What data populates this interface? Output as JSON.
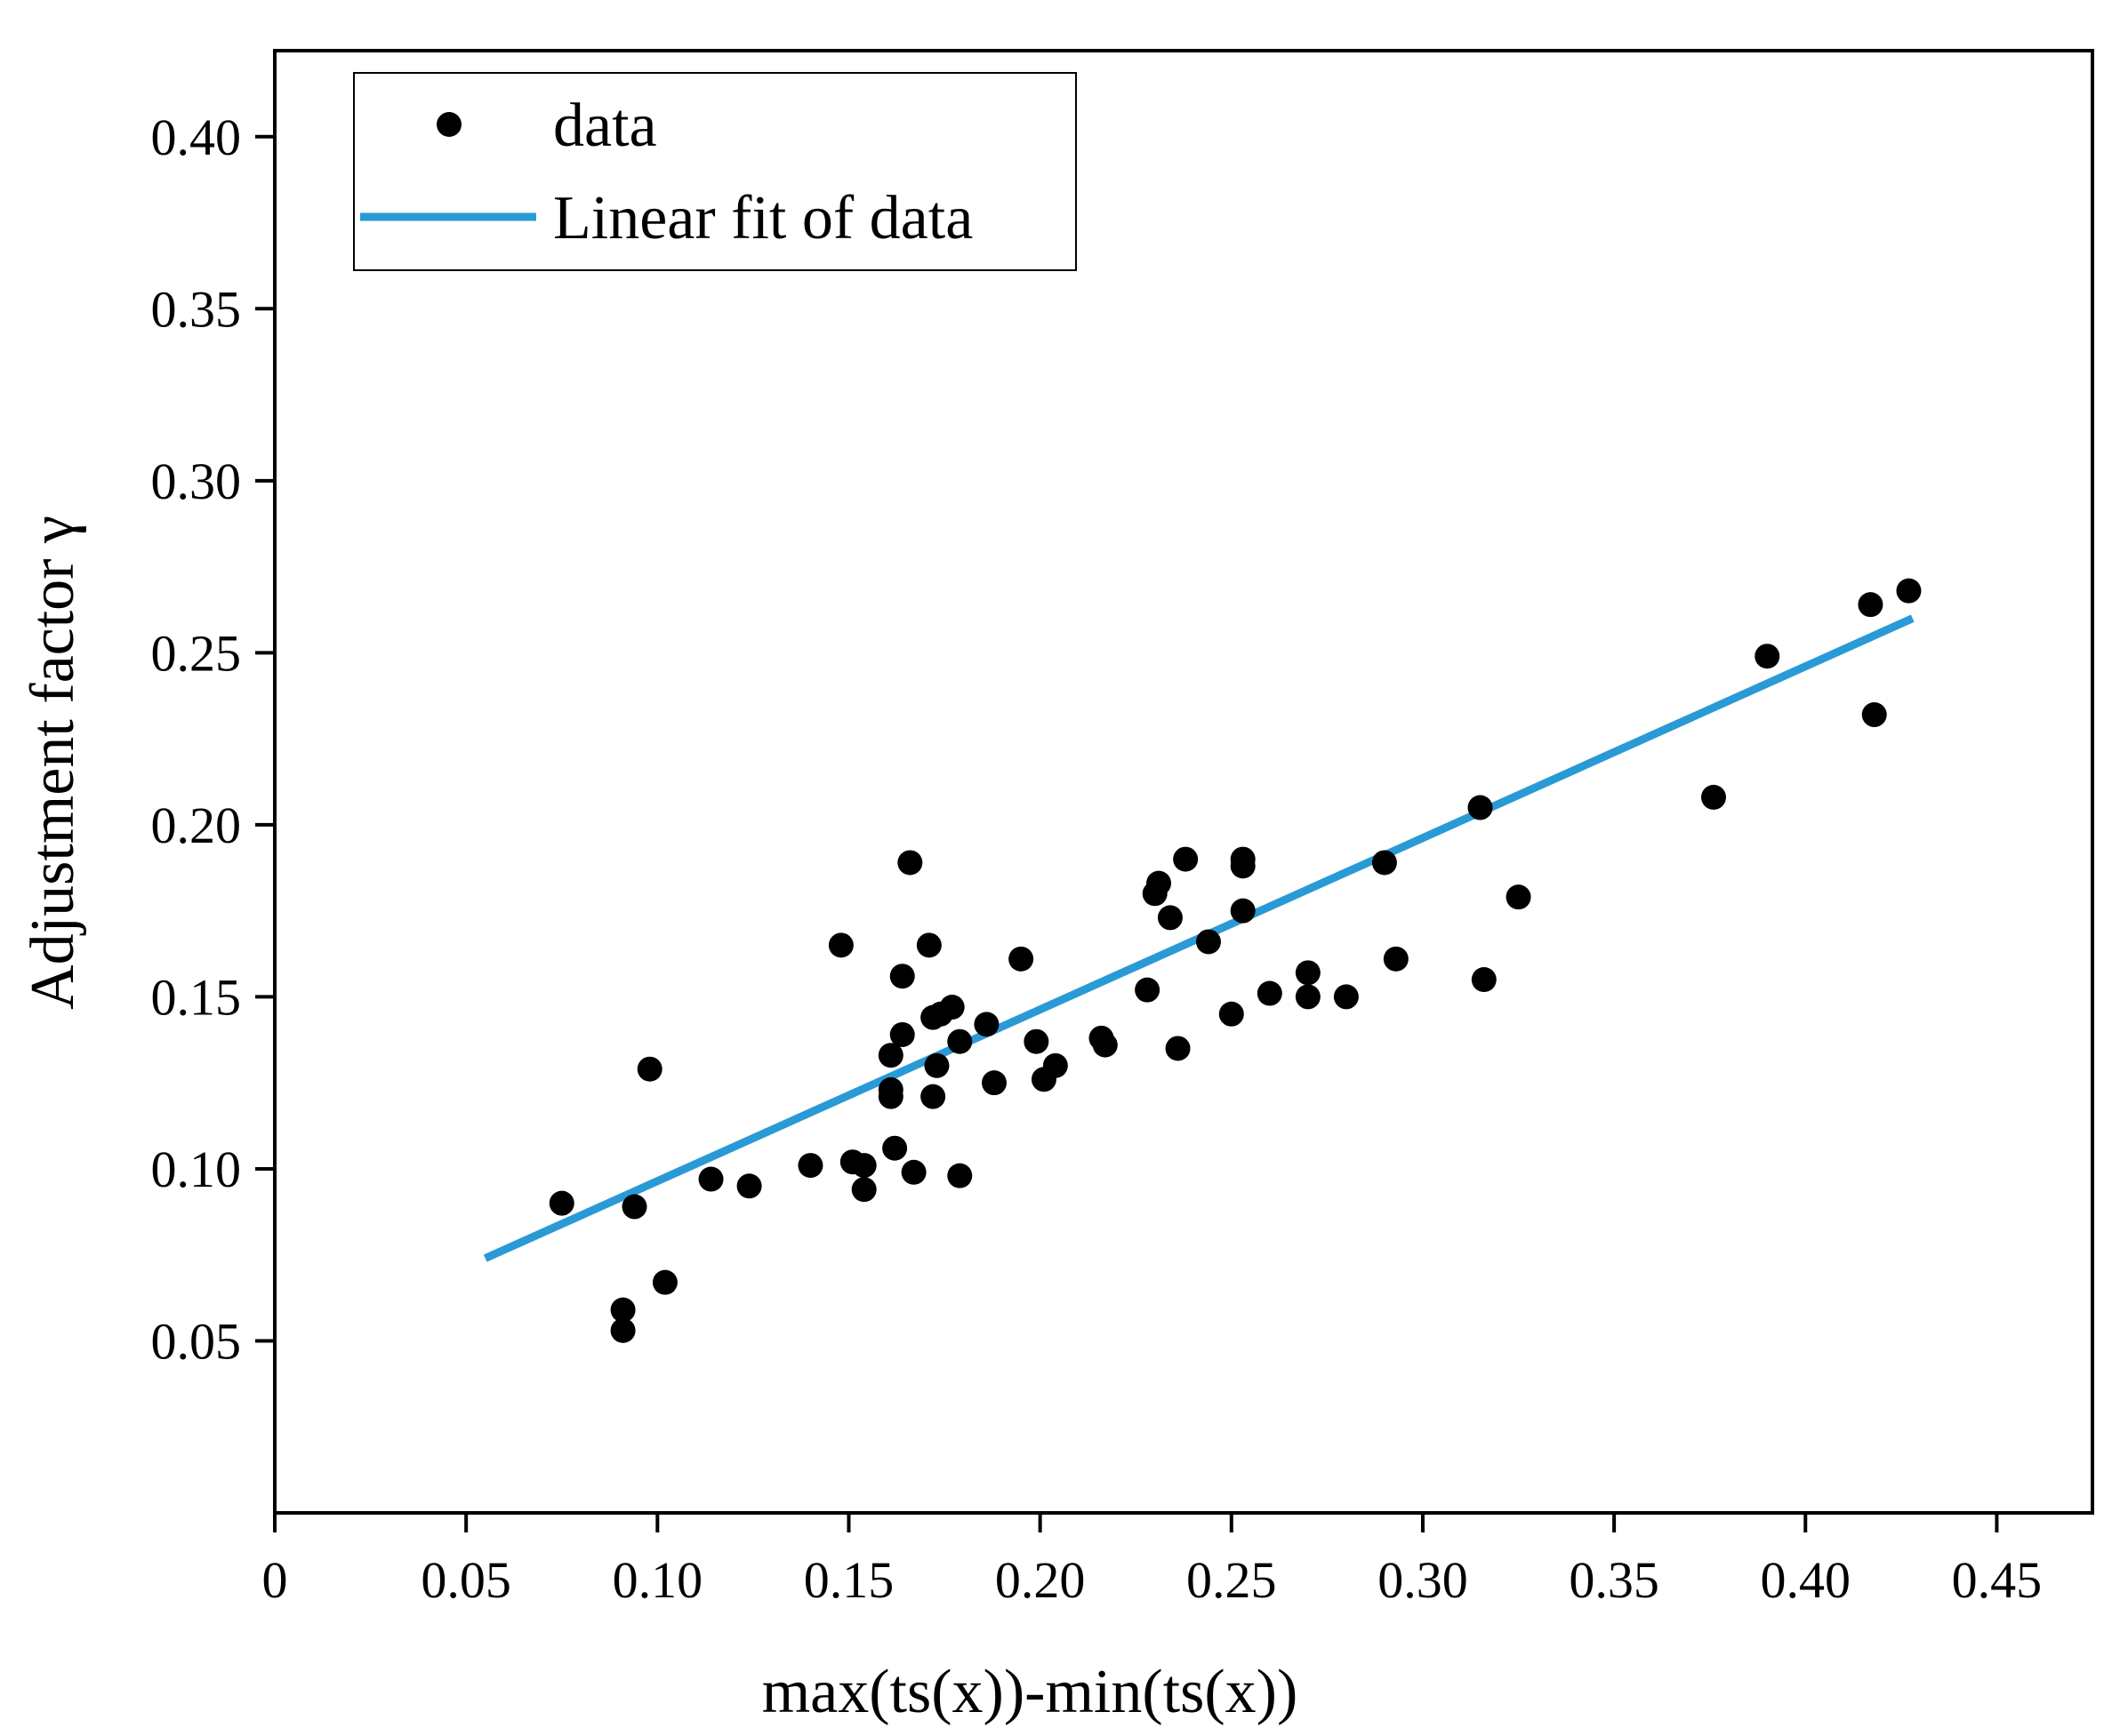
{
  "colors": {
    "points": "#000000",
    "fit": "#2a9ad6",
    "axes": "#000000",
    "background": "#ffffff"
  },
  "chart_data": {
    "type": "scatter",
    "title": "",
    "xlabel": "max(ts(x))-min(ts(x))",
    "ylabel": "Adjustment factor γ",
    "xlim": [
      0,
      0.475
    ],
    "ylim": [
      0,
      0.425
    ],
    "xticks": [
      0,
      0.05,
      0.1,
      0.15,
      0.2,
      0.25,
      0.3,
      0.35,
      0.4,
      0.45
    ],
    "xtick_labels": [
      "0",
      "0.05",
      "0.10",
      "0.15",
      "0.20",
      "0.25",
      "0.30",
      "0.35",
      "0.40",
      "0.45"
    ],
    "yticks": [
      0.05,
      0.1,
      0.15,
      0.2,
      0.25,
      0.3,
      0.35,
      0.4
    ],
    "ytick_labels": [
      "0.05",
      "0.10",
      "0.15",
      "0.20",
      "0.25",
      "0.30",
      "0.35",
      "0.40"
    ],
    "legend": {
      "position": "top-left",
      "entries": [
        {
          "label": "data",
          "kind": "marker"
        },
        {
          "label": "Linear fit of data",
          "kind": "line"
        }
      ]
    },
    "series": [
      {
        "name": "data",
        "kind": "scatter",
        "points": [
          [
            0.075,
            0.09
          ],
          [
            0.091,
            0.059
          ],
          [
            0.091,
            0.053
          ],
          [
            0.094,
            0.089
          ],
          [
            0.098,
            0.129
          ],
          [
            0.102,
            0.067
          ],
          [
            0.114,
            0.097
          ],
          [
            0.124,
            0.095
          ],
          [
            0.14,
            0.101
          ],
          [
            0.148,
            0.165
          ],
          [
            0.151,
            0.102
          ],
          [
            0.154,
            0.101
          ],
          [
            0.154,
            0.094
          ],
          [
            0.161,
            0.133
          ],
          [
            0.161,
            0.123
          ],
          [
            0.161,
            0.121
          ],
          [
            0.162,
            0.106
          ],
          [
            0.164,
            0.156
          ],
          [
            0.164,
            0.139
          ],
          [
            0.166,
            0.189
          ],
          [
            0.167,
            0.099
          ],
          [
            0.171,
            0.165
          ],
          [
            0.172,
            0.121
          ],
          [
            0.172,
            0.144
          ],
          [
            0.173,
            0.13
          ],
          [
            0.174,
            0.145
          ],
          [
            0.177,
            0.147
          ],
          [
            0.179,
            0.137
          ],
          [
            0.179,
            0.098
          ],
          [
            0.186,
            0.142
          ],
          [
            0.188,
            0.125
          ],
          [
            0.195,
            0.161
          ],
          [
            0.199,
            0.137
          ],
          [
            0.201,
            0.126
          ],
          [
            0.204,
            0.13
          ],
          [
            0.216,
            0.138
          ],
          [
            0.217,
            0.136
          ],
          [
            0.228,
            0.152
          ],
          [
            0.23,
            0.18
          ],
          [
            0.231,
            0.183
          ],
          [
            0.234,
            0.173
          ],
          [
            0.236,
            0.135
          ],
          [
            0.238,
            0.19
          ],
          [
            0.244,
            0.166
          ],
          [
            0.25,
            0.145
          ],
          [
            0.253,
            0.19
          ],
          [
            0.253,
            0.188
          ],
          [
            0.253,
            0.175
          ],
          [
            0.26,
            0.151
          ],
          [
            0.27,
            0.157
          ],
          [
            0.27,
            0.15
          ],
          [
            0.28,
            0.15
          ],
          [
            0.29,
            0.189
          ],
          [
            0.293,
            0.161
          ],
          [
            0.315,
            0.205
          ],
          [
            0.316,
            0.155
          ],
          [
            0.325,
            0.179
          ],
          [
            0.376,
            0.208
          ],
          [
            0.39,
            0.249
          ],
          [
            0.417,
            0.264
          ],
          [
            0.418,
            0.232
          ],
          [
            0.427,
            0.268
          ]
        ]
      },
      {
        "name": "Linear fit of data",
        "kind": "line",
        "x": [
          0.055,
          0.428
        ],
        "y": [
          0.074,
          0.26
        ]
      }
    ]
  }
}
